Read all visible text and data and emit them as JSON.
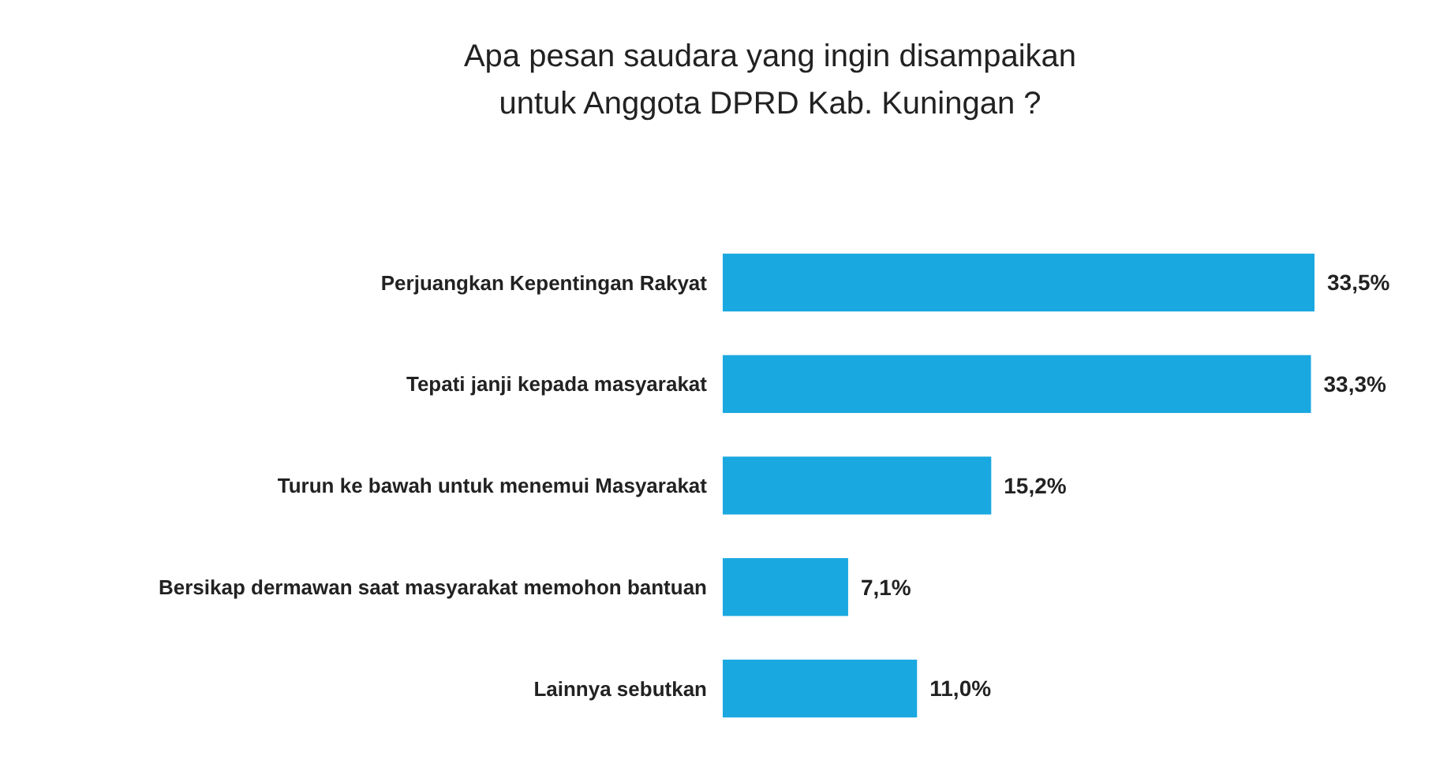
{
  "chart_data": {
    "type": "bar",
    "orientation": "horizontal",
    "title": "Apa pesan saudara yang ingin disampaikan\nuntuk Anggota DPRD Kab. Kuningan ?",
    "categories": [
      "Perjuangkan Kepentingan Rakyat",
      "Tepati janji kepada masyarakat",
      "Turun ke bawah untuk menemui Masyarakat",
      "Bersikap dermawan saat masyarakat memohon bantuan",
      "Lainnya sebutkan"
    ],
    "values": [
      33.5,
      33.3,
      15.2,
      7.1,
      11.0
    ],
    "value_labels": [
      "33,5%",
      "33,3%",
      "15,2%",
      "7,1%",
      "11,0%"
    ],
    "color": "#1aa8e0"
  }
}
